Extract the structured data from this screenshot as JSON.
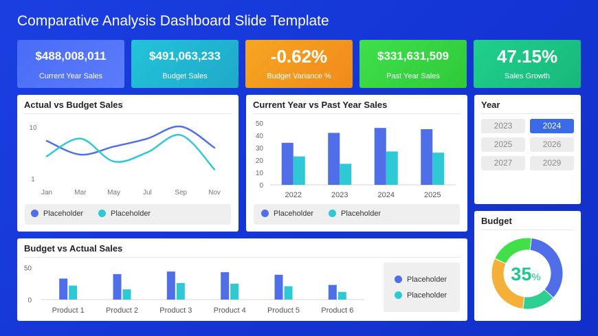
{
  "page": {
    "title": "Comparative Analysis Dashboard Slide Template"
  },
  "kpis": [
    {
      "value": "$488,008,011",
      "label": "Current Year Sales",
      "color_from": "#4a6cf7",
      "color_to": "#5b7cfa"
    },
    {
      "value": "$491,063,233",
      "label": "Budget Sales",
      "color_from": "#22c3d9",
      "color_to": "#1fa9c9"
    },
    {
      "value": "-0.62%",
      "label": "Budget Variance %",
      "color_from": "#f6a623",
      "color_to": "#f08a1a"
    },
    {
      "value": "$331,631,509",
      "label": "Past Year Sales",
      "color_from": "#3ee04a",
      "color_to": "#2fc93a"
    },
    {
      "value": "47.15%",
      "label": "Sales Growth",
      "color_from": "#1fd08c",
      "color_to": "#18b87a"
    }
  ],
  "colors": {
    "primary": "#4f6ee8",
    "secondary": "#2ec9d4",
    "donut_teal": "#2ed08f",
    "donut_orange": "#f5b03a",
    "donut_green": "#43df4a",
    "donut_blue": "#4f6ee8",
    "percent_text": "#1fc78a"
  },
  "panels": {
    "actual_vs_budget": {
      "title": "Actual vs Budget Sales",
      "legend": [
        "Placeholder",
        "Placeholder"
      ]
    },
    "cy_vs_py": {
      "title": "Current Year vs Past Year Sales",
      "legend": [
        "Placeholder",
        "Placeholder"
      ]
    },
    "year": {
      "title": "Year",
      "options": [
        "2023",
        "2024",
        "2025",
        "2026",
        "2027",
        "2029"
      ],
      "selected": "2024"
    },
    "budget": {
      "title": "Budget",
      "percent_value": "35",
      "percent_sign": "%"
    },
    "budget_vs_actual": {
      "title": "Budget vs Actual Sales",
      "legend": [
        "Placeholder",
        "Placeholder"
      ]
    }
  },
  "chart_data": [
    {
      "id": "line",
      "type": "line",
      "x": [
        "Jan",
        "Mar",
        "May",
        "Jul",
        "Sep",
        "Nov"
      ],
      "yticks": [
        "10",
        "1"
      ],
      "series": [
        {
          "values": [
            7.6,
            5.2,
            6.6,
            8.0,
            10.1,
            6.4
          ]
        },
        {
          "values": [
            4.9,
            8.0,
            4.0,
            5.6,
            8.6,
            2.6
          ]
        }
      ],
      "ylim": [
        1,
        10
      ]
    },
    {
      "id": "bar1",
      "type": "bar",
      "categories": [
        "2022",
        "2023",
        "2024",
        "2025"
      ],
      "yticks": [
        0,
        10,
        20,
        30,
        40,
        50
      ],
      "ylim": [
        0,
        50
      ],
      "series": [
        {
          "values": [
            34,
            42,
            46,
            45
          ]
        },
        {
          "values": [
            23,
            17,
            27,
            26
          ]
        }
      ]
    },
    {
      "id": "bar2",
      "type": "bar",
      "categories": [
        "Product 1",
        "Product 2",
        "Product 3",
        "Product 4",
        "Product 5",
        "Product 6"
      ],
      "yticks": [
        0,
        50
      ],
      "ylim": [
        0,
        55
      ],
      "series": [
        {
          "values": [
            33,
            40,
            44,
            43,
            39,
            23
          ]
        },
        {
          "values": [
            22,
            16,
            26,
            25,
            21,
            12
          ]
        }
      ]
    },
    {
      "id": "donut",
      "type": "pie",
      "values": [
        35,
        15,
        30,
        20
      ],
      "center_label": "35%"
    }
  ]
}
